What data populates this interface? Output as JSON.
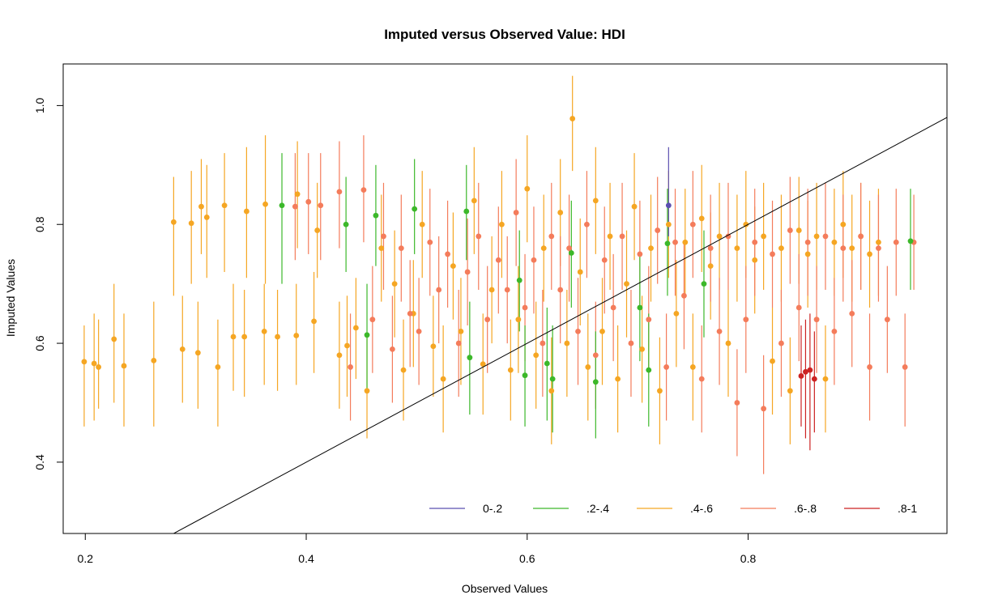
{
  "chart_data": {
    "type": "scatter",
    "title": "Imputed versus Observed Value: HDI",
    "xlabel": "Observed Values",
    "ylabel": "Imputed Values",
    "xlim": [
      0.18,
      0.98
    ],
    "ylim": [
      0.28,
      1.07
    ],
    "x_ticks": [
      "0.2",
      "0.4",
      "0.6",
      "0.8"
    ],
    "x_tick_values": [
      0.2,
      0.4,
      0.6,
      0.8
    ],
    "y_ticks": [
      "0.4",
      "0.6",
      "0.8",
      "1.0"
    ],
    "y_tick_values": [
      0.4,
      0.6,
      0.8,
      1.0
    ],
    "reference_line": {
      "slope": 1,
      "intercept": 0
    },
    "legend_position": "bottom-right",
    "series": [
      {
        "name": "0-.2",
        "color": "#5b4fb0",
        "points": [
          [
            0.728,
            0.832,
            0.78,
            0.93
          ]
        ]
      },
      {
        "name": ".2-.4",
        "color": "#3cb82a",
        "points": [
          [
            0.378,
            0.832,
            0.7,
            0.92
          ],
          [
            0.436,
            0.8,
            0.72,
            0.88
          ],
          [
            0.455,
            0.614,
            0.52,
            0.7
          ],
          [
            0.463,
            0.815,
            0.73,
            0.9
          ],
          [
            0.498,
            0.826,
            0.75,
            0.91
          ],
          [
            0.548,
            0.576,
            0.48,
            0.67
          ],
          [
            0.545,
            0.822,
            0.74,
            0.9
          ],
          [
            0.593,
            0.706,
            0.62,
            0.79
          ],
          [
            0.598,
            0.546,
            0.46,
            0.63
          ],
          [
            0.618,
            0.566,
            0.47,
            0.66
          ],
          [
            0.623,
            0.54,
            0.45,
            0.63
          ],
          [
            0.64,
            0.752,
            0.66,
            0.84
          ],
          [
            0.662,
            0.535,
            0.44,
            0.62
          ],
          [
            0.702,
            0.66,
            0.57,
            0.75
          ],
          [
            0.71,
            0.555,
            0.46,
            0.65
          ],
          [
            0.727,
            0.768,
            0.68,
            0.86
          ],
          [
            0.76,
            0.7,
            0.61,
            0.79
          ],
          [
            0.947,
            0.772,
            0.69,
            0.86
          ]
        ]
      },
      {
        "name": ".4-.6",
        "color": "#f5a623",
        "points": [
          [
            0.199,
            0.569,
            0.46,
            0.63
          ],
          [
            0.208,
            0.566,
            0.47,
            0.65
          ],
          [
            0.212,
            0.56,
            0.49,
            0.64
          ],
          [
            0.226,
            0.607,
            0.5,
            0.7
          ],
          [
            0.235,
            0.562,
            0.46,
            0.65
          ],
          [
            0.262,
            0.571,
            0.46,
            0.67
          ],
          [
            0.28,
            0.804,
            0.68,
            0.88
          ],
          [
            0.288,
            0.59,
            0.5,
            0.68
          ],
          [
            0.296,
            0.802,
            0.7,
            0.89
          ],
          [
            0.302,
            0.584,
            0.49,
            0.67
          ],
          [
            0.305,
            0.83,
            0.75,
            0.91
          ],
          [
            0.31,
            0.812,
            0.71,
            0.9
          ],
          [
            0.32,
            0.56,
            0.46,
            0.64
          ],
          [
            0.326,
            0.832,
            0.72,
            0.92
          ],
          [
            0.334,
            0.611,
            0.52,
            0.7
          ],
          [
            0.346,
            0.822,
            0.71,
            0.93
          ],
          [
            0.344,
            0.611,
            0.51,
            0.69
          ],
          [
            0.362,
            0.62,
            0.53,
            0.7
          ],
          [
            0.363,
            0.834,
            0.7,
            0.95
          ],
          [
            0.374,
            0.611,
            0.52,
            0.69
          ],
          [
            0.391,
            0.613,
            0.53,
            0.7
          ],
          [
            0.392,
            0.851,
            0.76,
            0.94
          ],
          [
            0.407,
            0.637,
            0.55,
            0.72
          ],
          [
            0.41,
            0.79,
            0.71,
            0.87
          ],
          [
            0.43,
            0.58,
            0.49,
            0.67
          ],
          [
            0.437,
            0.596,
            0.51,
            0.68
          ],
          [
            0.445,
            0.626,
            0.54,
            0.71
          ],
          [
            0.455,
            0.52,
            0.44,
            0.61
          ],
          [
            0.468,
            0.76,
            0.67,
            0.85
          ],
          [
            0.48,
            0.7,
            0.61,
            0.79
          ],
          [
            0.488,
            0.555,
            0.47,
            0.64
          ],
          [
            0.497,
            0.65,
            0.56,
            0.74
          ],
          [
            0.505,
            0.8,
            0.71,
            0.89
          ],
          [
            0.515,
            0.595,
            0.51,
            0.68
          ],
          [
            0.524,
            0.54,
            0.45,
            0.63
          ],
          [
            0.533,
            0.73,
            0.64,
            0.82
          ],
          [
            0.54,
            0.62,
            0.53,
            0.71
          ],
          [
            0.552,
            0.84,
            0.75,
            0.93
          ],
          [
            0.56,
            0.565,
            0.48,
            0.65
          ],
          [
            0.568,
            0.69,
            0.6,
            0.78
          ],
          [
            0.577,
            0.8,
            0.71,
            0.89
          ],
          [
            0.585,
            0.555,
            0.47,
            0.64
          ],
          [
            0.592,
            0.64,
            0.55,
            0.73
          ],
          [
            0.6,
            0.86,
            0.77,
            0.95
          ],
          [
            0.608,
            0.58,
            0.49,
            0.67
          ],
          [
            0.615,
            0.76,
            0.67,
            0.85
          ],
          [
            0.622,
            0.52,
            0.43,
            0.61
          ],
          [
            0.63,
            0.82,
            0.73,
            0.91
          ],
          [
            0.636,
            0.6,
            0.51,
            0.69
          ],
          [
            0.641,
            0.978,
            0.89,
            1.05
          ],
          [
            0.648,
            0.72,
            0.63,
            0.81
          ],
          [
            0.655,
            0.56,
            0.47,
            0.65
          ],
          [
            0.662,
            0.84,
            0.75,
            0.93
          ],
          [
            0.668,
            0.62,
            0.53,
            0.71
          ],
          [
            0.675,
            0.78,
            0.69,
            0.87
          ],
          [
            0.682,
            0.54,
            0.45,
            0.63
          ],
          [
            0.69,
            0.7,
            0.61,
            0.79
          ],
          [
            0.697,
            0.83,
            0.74,
            0.92
          ],
          [
            0.704,
            0.59,
            0.5,
            0.68
          ],
          [
            0.712,
            0.76,
            0.67,
            0.85
          ],
          [
            0.72,
            0.52,
            0.43,
            0.61
          ],
          [
            0.728,
            0.8,
            0.71,
            0.89
          ],
          [
            0.735,
            0.65,
            0.56,
            0.74
          ],
          [
            0.743,
            0.77,
            0.68,
            0.86
          ],
          [
            0.75,
            0.56,
            0.47,
            0.65
          ],
          [
            0.758,
            0.81,
            0.72,
            0.9
          ],
          [
            0.766,
            0.73,
            0.64,
            0.82
          ],
          [
            0.774,
            0.78,
            0.69,
            0.87
          ],
          [
            0.782,
            0.6,
            0.51,
            0.69
          ],
          [
            0.79,
            0.76,
            0.67,
            0.85
          ],
          [
            0.798,
            0.8,
            0.71,
            0.89
          ],
          [
            0.806,
            0.74,
            0.65,
            0.83
          ],
          [
            0.814,
            0.78,
            0.69,
            0.87
          ],
          [
            0.822,
            0.57,
            0.48,
            0.66
          ],
          [
            0.83,
            0.76,
            0.67,
            0.85
          ],
          [
            0.838,
            0.52,
            0.43,
            0.61
          ],
          [
            0.846,
            0.79,
            0.7,
            0.88
          ],
          [
            0.854,
            0.75,
            0.66,
            0.84
          ],
          [
            0.862,
            0.78,
            0.69,
            0.87
          ],
          [
            0.87,
            0.54,
            0.45,
            0.63
          ],
          [
            0.878,
            0.77,
            0.68,
            0.86
          ],
          [
            0.886,
            0.8,
            0.71,
            0.89
          ],
          [
            0.894,
            0.76,
            0.67,
            0.85
          ],
          [
            0.902,
            0.78,
            0.69,
            0.87
          ],
          [
            0.91,
            0.75,
            0.66,
            0.84
          ],
          [
            0.918,
            0.77,
            0.68,
            0.86
          ]
        ]
      },
      {
        "name": ".6-.8",
        "color": "#f47c5b",
        "points": [
          [
            0.39,
            0.83,
            0.74,
            0.92
          ],
          [
            0.402,
            0.838,
            0.75,
            0.92
          ],
          [
            0.413,
            0.832,
            0.74,
            0.92
          ],
          [
            0.43,
            0.855,
            0.76,
            0.94
          ],
          [
            0.44,
            0.56,
            0.47,
            0.65
          ],
          [
            0.452,
            0.858,
            0.77,
            0.95
          ],
          [
            0.46,
            0.64,
            0.55,
            0.73
          ],
          [
            0.47,
            0.78,
            0.69,
            0.87
          ],
          [
            0.478,
            0.59,
            0.5,
            0.68
          ],
          [
            0.486,
            0.76,
            0.67,
            0.85
          ],
          [
            0.494,
            0.65,
            0.56,
            0.74
          ],
          [
            0.502,
            0.62,
            0.53,
            0.71
          ],
          [
            0.512,
            0.77,
            0.68,
            0.86
          ],
          [
            0.52,
            0.69,
            0.6,
            0.78
          ],
          [
            0.528,
            0.75,
            0.66,
            0.84
          ],
          [
            0.538,
            0.6,
            0.51,
            0.69
          ],
          [
            0.546,
            0.72,
            0.63,
            0.81
          ],
          [
            0.556,
            0.78,
            0.69,
            0.87
          ],
          [
            0.564,
            0.64,
            0.55,
            0.73
          ],
          [
            0.574,
            0.74,
            0.65,
            0.83
          ],
          [
            0.582,
            0.69,
            0.6,
            0.78
          ],
          [
            0.59,
            0.82,
            0.73,
            0.91
          ],
          [
            0.598,
            0.66,
            0.57,
            0.75
          ],
          [
            0.606,
            0.74,
            0.65,
            0.83
          ],
          [
            0.614,
            0.6,
            0.51,
            0.69
          ],
          [
            0.622,
            0.78,
            0.69,
            0.87
          ],
          [
            0.63,
            0.69,
            0.6,
            0.78
          ],
          [
            0.638,
            0.76,
            0.67,
            0.85
          ],
          [
            0.646,
            0.62,
            0.53,
            0.71
          ],
          [
            0.654,
            0.8,
            0.71,
            0.89
          ],
          [
            0.662,
            0.58,
            0.49,
            0.67
          ],
          [
            0.67,
            0.74,
            0.65,
            0.83
          ],
          [
            0.678,
            0.66,
            0.57,
            0.75
          ],
          [
            0.686,
            0.78,
            0.69,
            0.87
          ],
          [
            0.694,
            0.6,
            0.51,
            0.69
          ],
          [
            0.702,
            0.75,
            0.66,
            0.84
          ],
          [
            0.71,
            0.64,
            0.55,
            0.73
          ],
          [
            0.718,
            0.79,
            0.7,
            0.88
          ],
          [
            0.726,
            0.56,
            0.47,
            0.65
          ],
          [
            0.734,
            0.77,
            0.68,
            0.86
          ],
          [
            0.742,
            0.68,
            0.59,
            0.77
          ],
          [
            0.75,
            0.8,
            0.71,
            0.89
          ],
          [
            0.758,
            0.54,
            0.45,
            0.63
          ],
          [
            0.766,
            0.76,
            0.67,
            0.85
          ],
          [
            0.774,
            0.62,
            0.53,
            0.71
          ],
          [
            0.782,
            0.78,
            0.69,
            0.87
          ],
          [
            0.79,
            0.5,
            0.41,
            0.59
          ],
          [
            0.798,
            0.64,
            0.55,
            0.73
          ],
          [
            0.806,
            0.77,
            0.68,
            0.86
          ],
          [
            0.814,
            0.49,
            0.38,
            0.58
          ],
          [
            0.822,
            0.75,
            0.66,
            0.84
          ],
          [
            0.83,
            0.6,
            0.51,
            0.69
          ],
          [
            0.838,
            0.79,
            0.7,
            0.88
          ],
          [
            0.846,
            0.66,
            0.57,
            0.75
          ],
          [
            0.854,
            0.77,
            0.68,
            0.86
          ],
          [
            0.862,
            0.64,
            0.55,
            0.73
          ],
          [
            0.87,
            0.78,
            0.69,
            0.87
          ],
          [
            0.878,
            0.62,
            0.53,
            0.71
          ],
          [
            0.886,
            0.76,
            0.67,
            0.85
          ],
          [
            0.894,
            0.65,
            0.56,
            0.74
          ],
          [
            0.902,
            0.78,
            0.69,
            0.87
          ],
          [
            0.91,
            0.56,
            0.47,
            0.65
          ],
          [
            0.918,
            0.76,
            0.67,
            0.85
          ],
          [
            0.926,
            0.64,
            0.55,
            0.73
          ],
          [
            0.934,
            0.77,
            0.68,
            0.86
          ],
          [
            0.942,
            0.56,
            0.46,
            0.65
          ],
          [
            0.95,
            0.77,
            0.69,
            0.85
          ]
        ]
      },
      {
        "name": ".8-1",
        "color": "#cc2222",
        "points": [
          [
            0.848,
            0.545,
            0.46,
            0.63
          ],
          [
            0.852,
            0.552,
            0.44,
            0.64
          ],
          [
            0.856,
            0.555,
            0.42,
            0.65
          ],
          [
            0.86,
            0.54,
            0.45,
            0.62
          ]
        ]
      }
    ]
  }
}
